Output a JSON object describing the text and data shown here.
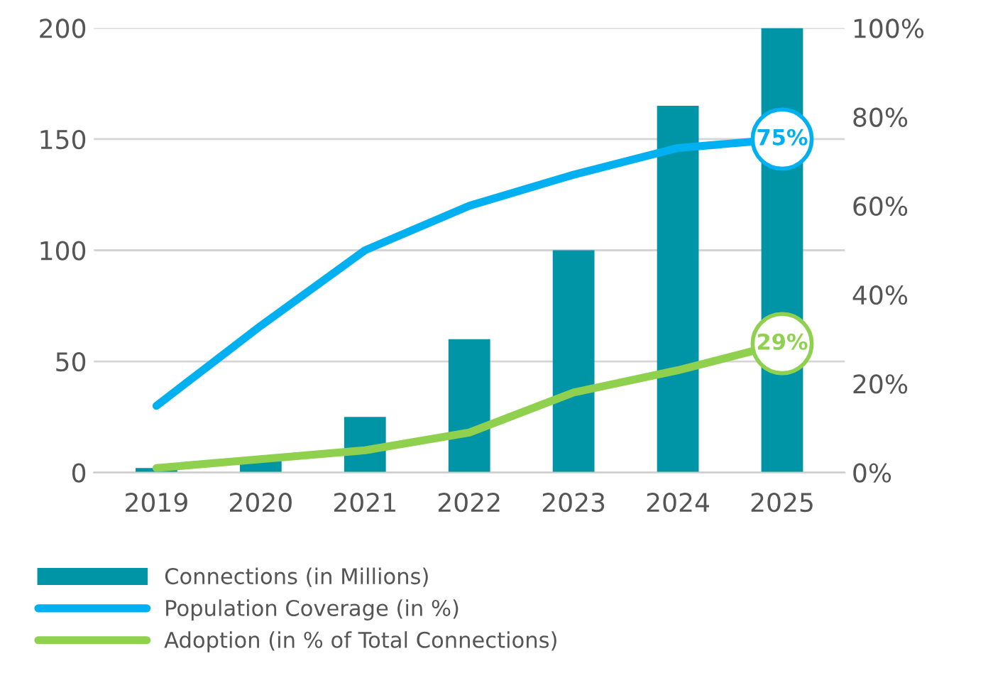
{
  "chart_data": {
    "type": "bar",
    "categories": [
      "2019",
      "2020",
      "2021",
      "2022",
      "2023",
      "2024",
      "2025"
    ],
    "series": [
      {
        "name": "Connections (in Millions)",
        "color": "#0095a6",
        "values": [
          2,
          6,
          25,
          60,
          100,
          165,
          200
        ]
      },
      {
        "name": "Population Coverage (in %)",
        "type": "line",
        "axis": "y2",
        "color": "#00b0f0",
        "values": [
          15,
          33,
          50,
          60,
          67,
          73,
          75
        ],
        "value_labels": [
          null,
          null,
          null,
          null,
          null,
          null,
          "75%"
        ]
      },
      {
        "name": "Adoption (in % of Total Connections)",
        "type": "line",
        "axis": "y2",
        "color": "#8fd14f",
        "values": [
          1,
          3,
          5,
          9,
          18,
          23,
          29
        ],
        "value_labels": [
          null,
          null,
          null,
          null,
          null,
          null,
          "29%"
        ]
      }
    ],
    "ylim": [
      0,
      200
    ],
    "yticks": [
      0,
      50,
      100,
      150,
      200
    ],
    "y2lim": [
      0,
      100
    ],
    "y2ticks": [
      {
        "value": 0,
        "label": "0%"
      },
      {
        "value": 20,
        "label": "20%"
      },
      {
        "value": 40,
        "label": "40%"
      },
      {
        "value": 60,
        "label": "60%"
      },
      {
        "value": 80,
        "label": "80%"
      },
      {
        "value": 100,
        "label": "100%"
      }
    ],
    "grid": "y",
    "legend": "bottom",
    "line_style": "solid",
    "marker": "none"
  }
}
